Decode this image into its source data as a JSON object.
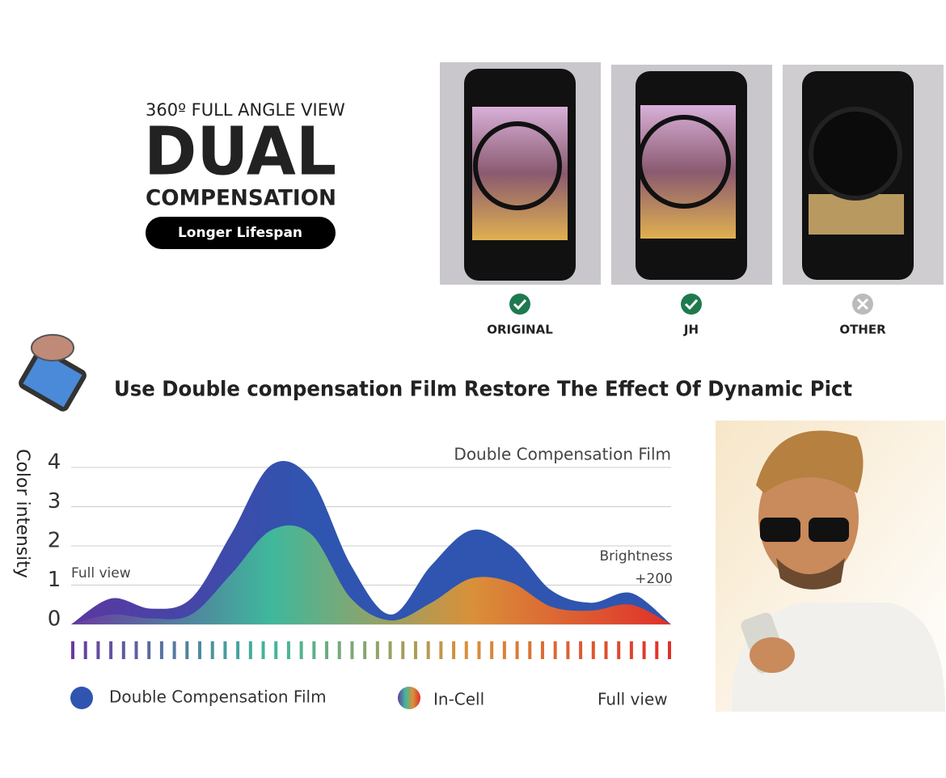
{
  "header": {
    "kicker": "360º FULL ANGLE VIEW",
    "title": "DUAL",
    "subtitle": "COMPENSATION",
    "badge": "Longer Lifespan"
  },
  "comparison": {
    "items": [
      {
        "label": "ORIGINAL"
      },
      {
        "label": "JH"
      },
      {
        "label": "OTHER"
      }
    ]
  },
  "headline": "Use Double compensation Film Restore The Effect Of Dynamic Pict",
  "chart_data": {
    "type": "area",
    "y_label": "Color intensity",
    "annotations": [
      "Double Compensation Film",
      "Full view",
      "Brightness",
      "+200"
    ],
    "categories": [
      null,
      null,
      null,
      null,
      null,
      null,
      null,
      null,
      null,
      null,
      null,
      null,
      null,
      null,
      null,
      null
    ],
    "series": [
      {
        "name": "Double Compensation Film",
        "color": "#2f55b0",
        "values": [
          0,
          0.66,
          0.4,
          0.66,
          2.3,
          4.06,
          3.7,
          1.5,
          0.25,
          1.5,
          2.4,
          2.0,
          0.87,
          0.55,
          0.8,
          0
        ]
      },
      {
        "name": "In-Cell",
        "colors": [
          "#6a3aa0",
          "#3fb89c",
          "#d9903a",
          "#e0302a"
        ],
        "values": [
          0,
          0.25,
          0.15,
          0.25,
          1.28,
          2.4,
          2.3,
          0.66,
          0.1,
          0.55,
          1.17,
          1.07,
          0.45,
          0.35,
          0.5,
          0
        ]
      }
    ],
    "legend_extra": "Full view",
    "ylim": [
      0,
      4
    ],
    "yticks": [
      0,
      1,
      2,
      3,
      4
    ],
    "grid": true
  }
}
